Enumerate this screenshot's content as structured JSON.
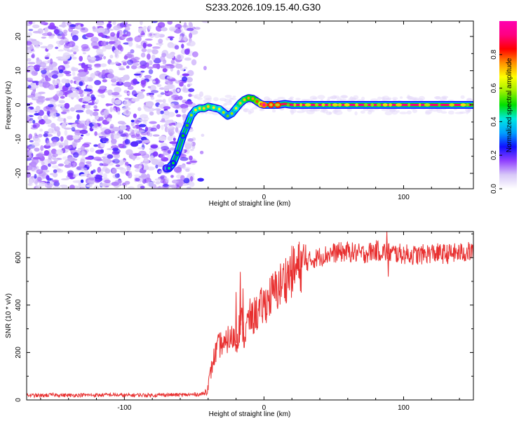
{
  "title": "S233.2026.109.15.40.G30",
  "chart_data": [
    {
      "type": "heatmap",
      "name": "spectrogram",
      "xlabel": "Height of straight line (km)",
      "ylabel": "Frequency (Hz)",
      "xlim": [
        -170,
        150
      ],
      "ylim": [
        -24.5,
        24.5
      ],
      "xticks": [
        -100,
        0,
        100
      ],
      "xticklabels": [
        "-100",
        "0",
        "100"
      ],
      "yticks": [
        -20,
        -10,
        0,
        10,
        20
      ],
      "yticklabels": [
        "-20",
        "-10",
        "0",
        "10",
        "20"
      ],
      "colorbar": {
        "label": "Normalized spectral amplitude",
        "range": [
          0,
          1
        ],
        "ticks": [
          0.0,
          0.2,
          0.4,
          0.6,
          0.8
        ],
        "ticklabels": [
          "0.0",
          "0.2",
          "0.4",
          "0.6",
          "0.8"
        ],
        "colors": [
          "#ffffff",
          "#d8c8f8",
          "#9040ff",
          "#1010ff",
          "#00a0ff",
          "#00e8e0",
          "#00e000",
          "#a0f000",
          "#ffff00",
          "#ff9000",
          "#ff0000",
          "#ff0080",
          "#ff00b0"
        ]
      },
      "noise_region_x": [
        -170,
        -50
      ],
      "ridge": {
        "x": [
          -70,
          -68,
          -65,
          -62,
          -58,
          -55,
          -52,
          -49,
          -46,
          -43,
          -40,
          -36,
          -32,
          -29,
          -26,
          -23,
          -20,
          -17,
          -14,
          -11,
          -8,
          -5,
          -2,
          0,
          5,
          10,
          15,
          20,
          40,
          60,
          80,
          100,
          120,
          150
        ],
        "y": [
          -18.5,
          -18.5,
          -17,
          -14,
          -9,
          -6,
          -3,
          -1.5,
          -1,
          -1,
          -0.5,
          -0.8,
          -1.2,
          -2.2,
          -3.2,
          -2.5,
          -1,
          0.5,
          1.5,
          2,
          1.8,
          1,
          0.2,
          0,
          0,
          0,
          0.3,
          0,
          0,
          0,
          0,
          0,
          0,
          0
        ],
        "amplitude": [
          0.22,
          0.26,
          0.28,
          0.3,
          0.3,
          0.32,
          0.38,
          0.45,
          0.48,
          0.5,
          0.5,
          0.48,
          0.45,
          0.4,
          0.35,
          0.38,
          0.45,
          0.5,
          0.52,
          0.55,
          0.55,
          0.6,
          0.7,
          0.85,
          0.9,
          0.9,
          0.9,
          0.9,
          0.92,
          0.92,
          0.92,
          0.92,
          0.92,
          0.9
        ]
      }
    },
    {
      "type": "line",
      "name": "snr",
      "xlabel": "Height of straight line (km)",
      "ylabel": "SNR (10 * v/v)",
      "xlim": [
        -170,
        150
      ],
      "ylim": [
        0,
        710
      ],
      "xticks": [
        -100,
        0,
        100
      ],
      "xticklabels": [
        "-100",
        "0",
        "100"
      ],
      "yticks": [
        0,
        200,
        400,
        600
      ],
      "yticklabels": [
        "0",
        "200",
        "400",
        "600"
      ],
      "color": "#e83030",
      "series": [
        {
          "name": "SNR",
          "x": [
            -170,
            -160,
            -150,
            -140,
            -130,
            -120,
            -110,
            -100,
            -90,
            -80,
            -70,
            -60,
            -50,
            -45,
            -42,
            -40,
            -38,
            -36,
            -34,
            -32,
            -30,
            -28,
            -26,
            -24,
            -22,
            -20,
            -18,
            -16,
            -14,
            -12,
            -10,
            -8,
            -6,
            -4,
            -2,
            0,
            5,
            10,
            15,
            20,
            25,
            30,
            40,
            50,
            60,
            70,
            80,
            90,
            100,
            110,
            120,
            130,
            140,
            150
          ],
          "y": [
            20,
            18,
            22,
            19,
            21,
            20,
            22,
            19,
            21,
            20,
            22,
            21,
            23,
            24,
            30,
            60,
            120,
            175,
            210,
            230,
            240,
            220,
            260,
            250,
            270,
            240,
            300,
            330,
            260,
            320,
            350,
            340,
            370,
            360,
            390,
            400,
            440,
            470,
            510,
            540,
            560,
            580,
            605,
            620,
            625,
            615,
            630,
            620,
            615,
            610,
            620,
            615,
            620,
            625
          ],
          "spikes": [
            {
              "x": -17,
              "y": 540
            },
            {
              "x": -15,
              "y": 470
            },
            {
              "x": -20,
              "y": 455
            },
            {
              "x": 88,
              "y": 710
            },
            {
              "x": 89,
              "y": 520
            }
          ]
        }
      ]
    }
  ]
}
